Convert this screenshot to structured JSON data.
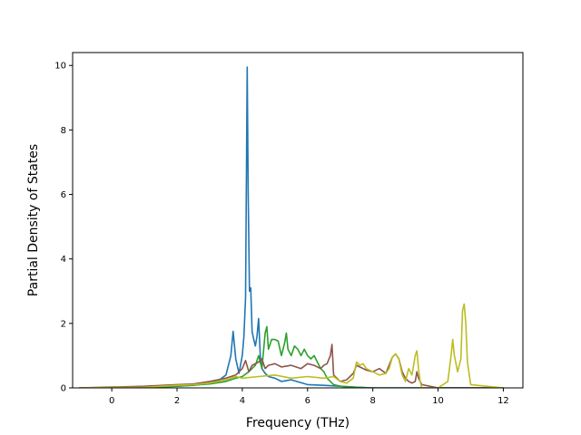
{
  "chart_data": {
    "type": "line",
    "title": "",
    "xlabel": "Frequency (THz)",
    "ylabel": "Partial Density of States",
    "xlim": [
      -1.2,
      12.6
    ],
    "ylim": [
      0,
      10.4
    ],
    "xticks": [
      0,
      2,
      4,
      6,
      8,
      10,
      12
    ],
    "xtick_labels": [
      "0",
      "2",
      "4",
      "6",
      "8",
      "10",
      "12"
    ],
    "yticks": [
      0,
      2,
      4,
      6,
      8,
      10
    ],
    "ytick_labels": [
      "0",
      "2",
      "4",
      "6",
      "8",
      "10"
    ],
    "grid": false,
    "legend": "none",
    "series": [
      {
        "color": "#1f77b4",
        "x": [
          -1.0,
          0.5,
          1.0,
          2.0,
          2.5,
          3.0,
          3.3,
          3.5,
          3.65,
          3.72,
          3.8,
          3.9,
          4.0,
          4.05,
          4.1,
          4.15,
          4.18,
          4.22,
          4.26,
          4.3,
          4.35,
          4.4,
          4.45,
          4.5,
          4.55,
          4.6,
          4.7,
          4.8,
          5.0,
          5.2,
          5.5,
          6.0,
          6.5,
          7.0,
          7.3,
          7.5,
          8.0,
          12.0
        ],
        "y": [
          0,
          0,
          0.02,
          0.05,
          0.08,
          0.15,
          0.25,
          0.4,
          1.0,
          1.75,
          0.9,
          0.45,
          1.0,
          1.6,
          2.8,
          9.95,
          6.0,
          3.0,
          3.1,
          1.75,
          1.5,
          1.3,
          1.6,
          2.15,
          1.0,
          0.6,
          0.45,
          0.35,
          0.3,
          0.2,
          0.25,
          0.1,
          0.08,
          0.05,
          0.03,
          0.02,
          0,
          0
        ]
      },
      {
        "color": "#2ca02c",
        "x": [
          -1.0,
          1.0,
          2.0,
          3.0,
          3.5,
          3.8,
          4.0,
          4.2,
          4.4,
          4.5,
          4.6,
          4.7,
          4.75,
          4.8,
          4.9,
          5.0,
          5.1,
          5.2,
          5.3,
          5.35,
          5.4,
          5.5,
          5.6,
          5.7,
          5.8,
          5.9,
          6.0,
          6.1,
          6.2,
          6.3,
          6.4,
          6.5,
          6.6,
          6.7,
          6.8,
          7.0,
          7.5,
          8.0,
          12.0
        ],
        "y": [
          0,
          0.02,
          0.05,
          0.12,
          0.2,
          0.3,
          0.35,
          0.5,
          0.7,
          1.0,
          0.6,
          1.7,
          1.9,
          1.2,
          1.5,
          1.5,
          1.45,
          1.0,
          1.4,
          1.7,
          1.2,
          1.0,
          1.3,
          1.2,
          1.0,
          1.2,
          1.0,
          0.9,
          1.0,
          0.8,
          0.6,
          0.5,
          0.3,
          0.2,
          0.1,
          0.05,
          0.02,
          0,
          0
        ]
      },
      {
        "color": "#8c564b",
        "x": [
          -1.0,
          1.0,
          2.0,
          2.5,
          3.0,
          3.5,
          3.8,
          4.0,
          4.1,
          4.2,
          4.3,
          4.5,
          4.6,
          4.7,
          4.8,
          5.0,
          5.2,
          5.5,
          5.8,
          6.0,
          6.2,
          6.4,
          6.5,
          6.6,
          6.7,
          6.75,
          6.8,
          6.9,
          7.0,
          7.2,
          7.4,
          7.5,
          7.6,
          7.8,
          8.0,
          8.2,
          8.4,
          8.5,
          8.6,
          8.7,
          8.8,
          8.9,
          9.0,
          9.1,
          9.2,
          9.3,
          9.35,
          9.4,
          9.5,
          10.0,
          12.0
        ],
        "y": [
          0,
          0.05,
          0.1,
          0.12,
          0.2,
          0.3,
          0.4,
          0.6,
          0.85,
          0.5,
          0.7,
          0.8,
          0.9,
          0.6,
          0.7,
          0.75,
          0.65,
          0.7,
          0.6,
          0.75,
          0.7,
          0.6,
          0.7,
          0.75,
          1.0,
          1.35,
          0.4,
          0.3,
          0.2,
          0.25,
          0.45,
          0.7,
          0.65,
          0.55,
          0.5,
          0.6,
          0.45,
          0.7,
          0.95,
          1.05,
          0.9,
          0.5,
          0.3,
          0.2,
          0.15,
          0.2,
          0.5,
          0.3,
          0.1,
          0,
          0
        ]
      },
      {
        "color": "#bcbd22",
        "x": [
          -1.0,
          1.0,
          2.0,
          2.5,
          3.0,
          3.5,
          3.8,
          4.0,
          4.5,
          5.0,
          5.5,
          6.0,
          6.5,
          6.8,
          7.0,
          7.2,
          7.4,
          7.5,
          7.6,
          7.7,
          7.8,
          8.0,
          8.2,
          8.4,
          8.5,
          8.6,
          8.7,
          8.8,
          8.9,
          9.0,
          9.1,
          9.2,
          9.3,
          9.35,
          9.4,
          9.45,
          9.5,
          10.0,
          10.3,
          10.4,
          10.45,
          10.5,
          10.6,
          10.7,
          10.75,
          10.8,
          10.85,
          10.9,
          11.0,
          12.0
        ],
        "y": [
          0,
          0.02,
          0.08,
          0.1,
          0.15,
          0.25,
          0.35,
          0.3,
          0.35,
          0.4,
          0.3,
          0.35,
          0.3,
          0.35,
          0.2,
          0.15,
          0.3,
          0.8,
          0.7,
          0.75,
          0.6,
          0.5,
          0.4,
          0.45,
          0.6,
          0.95,
          1.05,
          0.9,
          0.4,
          0.2,
          0.6,
          0.4,
          1.0,
          1.15,
          0.6,
          0.2,
          0,
          0,
          0.2,
          1.0,
          1.5,
          1.0,
          0.5,
          0.9,
          2.4,
          2.6,
          2.0,
          0.8,
          0.1,
          0
        ]
      }
    ]
  }
}
